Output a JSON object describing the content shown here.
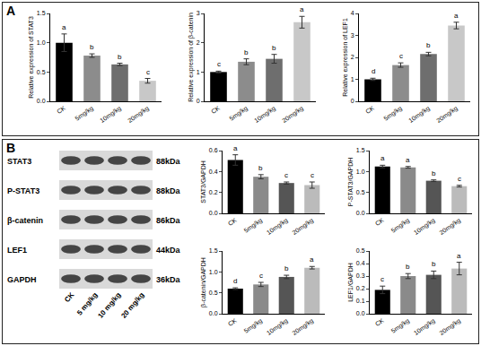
{
  "panel_labels": [
    "A",
    "B"
  ],
  "blot": {
    "rows": [
      {
        "label": "STAT3",
        "size": "88kDa"
      },
      {
        "label": "P-STAT3",
        "size": "88kDa"
      },
      {
        "label": "β-catenin",
        "size": "86kDa"
      },
      {
        "label": "LEF1",
        "size": "44kDa"
      },
      {
        "label": "GAPDH",
        "size": "36kDa"
      }
    ],
    "lanes": [
      "CK",
      "5 mg/kg",
      "10 mg/kg",
      "20 mg/kg"
    ]
  },
  "chart_data": [
    {
      "type": "bar",
      "y_label": "Relative expression of STAT3",
      "categories": [
        "CK",
        "5mg/kg",
        "10mg/kg",
        "20mg/kg"
      ],
      "values": [
        1.0,
        0.78,
        0.63,
        0.35
      ],
      "errors": [
        0.15,
        0.03,
        0.02,
        0.04
      ],
      "annotations": [
        "a",
        "b",
        "b",
        "c"
      ],
      "colors": [
        "#000000",
        "#8c8c8c",
        "#6e6e6e",
        "#c8c8c8"
      ],
      "ylim": [
        0,
        1.5
      ],
      "yticks": [
        {
          "value": 0,
          "label": "0.0"
        },
        {
          "value": 0.5,
          "label": "0.5"
        },
        {
          "value": 1,
          "label": "1.0"
        },
        {
          "value": 1.5,
          "label": "1.5"
        }
      ]
    },
    {
      "type": "bar",
      "y_label": "Relative expression of β-catenin",
      "categories": [
        "CK",
        "5mg/kg",
        "10mg/kg",
        "20mg/kg"
      ],
      "values": [
        1.0,
        1.35,
        1.45,
        2.7
      ],
      "errors": [
        0.03,
        0.1,
        0.15,
        0.2
      ],
      "annotations": [
        "c",
        "b",
        "b",
        "a"
      ],
      "colors": [
        "#000000",
        "#8c8c8c",
        "#6e6e6e",
        "#c8c8c8"
      ],
      "ylim": [
        0,
        3
      ],
      "yticks": [
        0,
        1,
        2,
        3
      ]
    },
    {
      "type": "bar",
      "y_label": "Relative expression of LEF1",
      "categories": [
        "CK",
        "5mg/kg",
        "10mg/kg",
        "20mg/kg"
      ],
      "values": [
        1.0,
        1.65,
        2.15,
        3.45
      ],
      "errors": [
        0.05,
        0.1,
        0.08,
        0.15
      ],
      "annotations": [
        "d",
        "c",
        "b",
        "a"
      ],
      "colors": [
        "#000000",
        "#8c8c8c",
        "#6e6e6e",
        "#c8c8c8"
      ],
      "ylim": [
        0,
        4
      ],
      "yticks": [
        0,
        1,
        2,
        3,
        4
      ]
    },
    {
      "type": "bar",
      "y_label": "STAT3/GAPDH",
      "categories": [
        "CK",
        "5mg/kg",
        "10mg/kg",
        "20mg/kg"
      ],
      "values": [
        0.51,
        0.35,
        0.29,
        0.27
      ],
      "errors": [
        0.05,
        0.02,
        0.01,
        0.03
      ],
      "annotations": [
        "a",
        "b",
        "c",
        "c"
      ],
      "colors": [
        "#000000",
        "#8a8a8a",
        "#555555",
        "#bbbbbb"
      ],
      "ylim": [
        0,
        0.6
      ],
      "yticks": [
        {
          "value": 0,
          "label": "0.0"
        },
        {
          "value": 0.2,
          "label": "0.2"
        },
        {
          "value": 0.4,
          "label": "0.4"
        },
        {
          "value": 0.6,
          "label": "0.6"
        }
      ]
    },
    {
      "type": "bar",
      "y_label": "P-STAT3/GAPDH",
      "categories": [
        "CK",
        "5mg/kg",
        "10mg/kg",
        "20mg/kg"
      ],
      "values": [
        1.12,
        1.1,
        0.78,
        0.65
      ],
      "errors": [
        0.03,
        0.02,
        0.02,
        0.02
      ],
      "annotations": [
        "a",
        "a",
        "b",
        "c"
      ],
      "colors": [
        "#000000",
        "#8a8a8a",
        "#555555",
        "#bbbbbb"
      ],
      "ylim": [
        0,
        1.5
      ],
      "yticks": [
        {
          "value": 0,
          "label": "0.0"
        },
        {
          "value": 0.5,
          "label": "0.5"
        },
        {
          "value": 1,
          "label": "1.0"
        },
        {
          "value": 1.5,
          "label": "1.5"
        }
      ]
    },
    {
      "type": "bar",
      "y_label": "β-catenin/GAPDH",
      "categories": [
        "CK",
        "5mg/kg",
        "10mg/kg",
        "20mg/kg"
      ],
      "values": [
        0.6,
        0.7,
        0.88,
        1.1
      ],
      "errors": [
        0.02,
        0.05,
        0.04,
        0.03
      ],
      "annotations": [
        "d",
        "c",
        "b",
        "a"
      ],
      "colors": [
        "#000000",
        "#8a8a8a",
        "#555555",
        "#bbbbbb"
      ],
      "ylim": [
        0,
        1.5
      ],
      "yticks": [
        {
          "value": 0,
          "label": "0.0"
        },
        {
          "value": 0.5,
          "label": "0.5"
        },
        {
          "value": 1,
          "label": "1.0"
        },
        {
          "value": 1.5,
          "label": "1.5"
        }
      ]
    },
    {
      "type": "bar",
      "y_label": "LEF1/GAPDH",
      "categories": [
        "CK",
        "5mg/kg",
        "10mg/kg",
        "20mg/kg"
      ],
      "values": [
        0.19,
        0.3,
        0.31,
        0.36
      ],
      "errors": [
        0.03,
        0.02,
        0.03,
        0.05
      ],
      "annotations": [
        "c",
        "b",
        "b",
        "a"
      ],
      "colors": [
        "#000000",
        "#8a8a8a",
        "#555555",
        "#bbbbbb"
      ],
      "ylim": [
        0,
        0.5
      ],
      "yticks": [
        {
          "value": 0,
          "label": "0.0"
        },
        {
          "value": 0.1,
          "label": "0.1"
        },
        {
          "value": 0.2,
          "label": "0.2"
        },
        {
          "value": 0.3,
          "label": "0.3"
        },
        {
          "value": 0.4,
          "label": "0.4"
        },
        {
          "value": 0.5,
          "label": "0.5"
        }
      ]
    }
  ]
}
